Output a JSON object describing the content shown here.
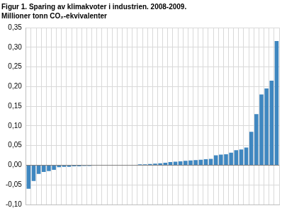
{
  "chart_data": {
    "type": "bar",
    "title": "Figur 1. Sparing av klimakvoter i industrien. 2008-2009.",
    "subtitle": "Millioner tonn CO₂-ekvivalenter",
    "categories": [
      null,
      null,
      null,
      null,
      null,
      null,
      null,
      null,
      null,
      null,
      null,
      null,
      null,
      null,
      null,
      null,
      null,
      null,
      null,
      null,
      null,
      null,
      null,
      null,
      null,
      null,
      null,
      null,
      null,
      null,
      null,
      null,
      null,
      null,
      null,
      null,
      null,
      null,
      null,
      null,
      null,
      null,
      null,
      null,
      null,
      null,
      null,
      null,
      null,
      null
    ],
    "values": [
      -0.06,
      -0.04,
      -0.022,
      -0.017,
      -0.015,
      -0.012,
      -0.005,
      -0.004,
      -0.004,
      -0.003,
      -0.003,
      -0.002,
      -0.002,
      -0.001,
      -0.001,
      -0.001,
      0,
      0,
      0,
      0.001,
      0.001,
      0.001,
      0.002,
      0.002,
      0.003,
      0.004,
      0.005,
      0.006,
      0.008,
      0.009,
      0.01,
      0.011,
      0.012,
      0.013,
      0.014,
      0.015,
      0.016,
      0.025,
      0.027,
      0.028,
      0.032,
      0.038,
      0.04,
      0.045,
      0.085,
      0.13,
      0.18,
      0.195,
      0.215,
      0.316
    ],
    "color": "#3f87c0",
    "ylim": [
      -0.1,
      0.35
    ],
    "yticks": [
      {
        "value": -0.1,
        "label": "-0,10"
      },
      {
        "value": -0.05,
        "label": "-0,05"
      },
      {
        "value": 0,
        "label": "0,00"
      },
      {
        "value": 0.05,
        "label": "0,05"
      },
      {
        "value": 0.1,
        "label": "0,10"
      },
      {
        "value": 0.15,
        "label": "0,15"
      },
      {
        "value": 0.2,
        "label": "0,20"
      },
      {
        "value": 0.25,
        "label": "0,25"
      },
      {
        "value": 0.3,
        "label": "0,30"
      },
      {
        "value": 0.35,
        "label": "0,35"
      }
    ],
    "grid": true,
    "tick_labels": "y"
  }
}
